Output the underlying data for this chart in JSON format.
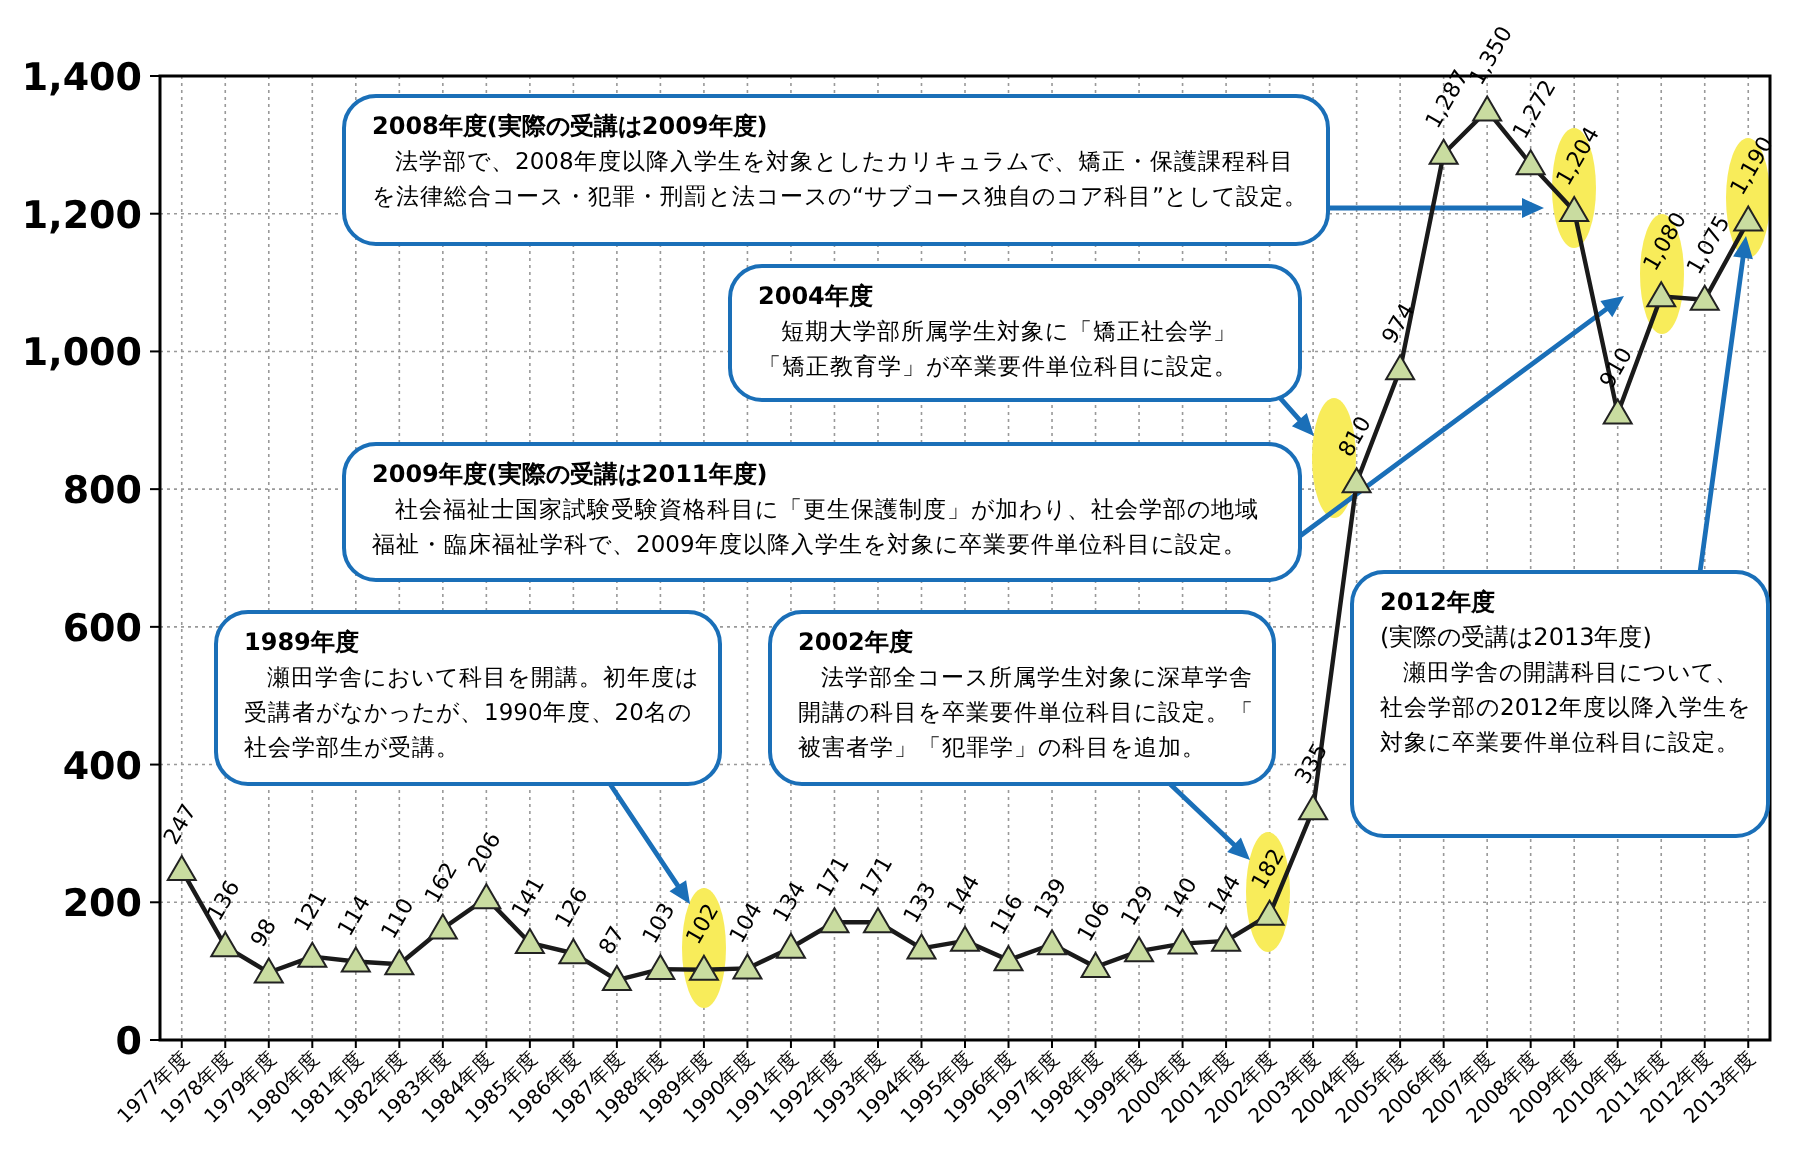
{
  "chart_data": {
    "type": "line",
    "categories": [
      "1977年度",
      "1978年度",
      "1979年度",
      "1980年度",
      "1981年度",
      "1982年度",
      "1983年度",
      "1984年度",
      "1985年度",
      "1986年度",
      "1987年度",
      "1988年度",
      "1989年度",
      "1990年度",
      "1991年度",
      "1992年度",
      "1993年度",
      "1994年度",
      "1995年度",
      "1996年度",
      "1997年度",
      "1998年度",
      "1999年度",
      "2000年度",
      "2001年度",
      "2002年度",
      "2003年度",
      "2004年度",
      "2005年度",
      "2006年度",
      "2007年度",
      "2008年度",
      "2009年度",
      "2010年度",
      "2011年度",
      "2012年度",
      "2013年度"
    ],
    "series": [
      {
        "color": "#1a1a1a",
        "values": [
          247,
          136,
          98,
          121,
          114,
          110,
          162,
          206,
          141,
          126,
          87,
          103,
          102,
          104,
          134,
          171,
          171,
          133,
          144,
          116,
          139,
          106,
          129,
          140,
          144,
          182,
          335,
          810,
          974,
          1287,
          1350,
          1272,
          1204,
          910,
          1080,
          1075,
          1190
        ],
        "value_labels": [
          "247",
          "136",
          "98",
          "121",
          "114",
          "110",
          "162",
          "206",
          "141",
          "126",
          "87",
          "103",
          "102",
          "104",
          "134",
          "171",
          "171",
          "133",
          "144",
          "116",
          "139",
          "106",
          "129",
          "140",
          "144",
          "182",
          "335",
          "810",
          "974",
          "1,287",
          "1,350",
          "1,272",
          "1,204",
          "910",
          "1,080",
          "1,075",
          "1,190"
        ]
      }
    ],
    "ylim": [
      0,
      1400
    ],
    "yticks": [
      0,
      200,
      400,
      600,
      800,
      {
        "value": 1000,
        "label": "1,000"
      },
      {
        "value": 1200,
        "label": "1,200"
      },
      {
        "value": 1400,
        "label": "1,400"
      }
    ],
    "grid": true,
    "marker": "triangle",
    "annotations": [
      "2008年度(実際の受講は2009年度)",
      "法学部で、2008年度以降入学生を対象としたカリキュラムで、矯正・保護課程科目を法律総合コース・犯罪・刑罰と法コースの“サブコース独自のコア科目”として設定。",
      "2004年度",
      "短期大学部所属学生対象に「矯正社会学」「矯正教育学」が卒業要件単位科目に設定。",
      "2009年度(実際の受講は2011年度)",
      "社会福祉士国家試験受験資格科目に「更生保護制度」が加わり、社会学部の地域福祉・臨床福祉学科で、2009年度以降入学生を対象に卒業要件単位科目に設定。",
      "1989年度",
      "瀬田学舎において科目を開講。初年度は受講者がなかったが、1990年度、20名の社会学部生が受講。",
      "2002年度",
      "法学部全コース所属学生対象に深草学舎開講の科目を卒業要件単位科目に設定。「被害者学」「犯罪学」の科目を追加。",
      "2012年度",
      "(実際の受講は2013年度)",
      "瀬田学舎の開講科目について、社会学部の2012年度以降入学生を対象に卒業要件単位科目に設定。"
    ]
  }
}
